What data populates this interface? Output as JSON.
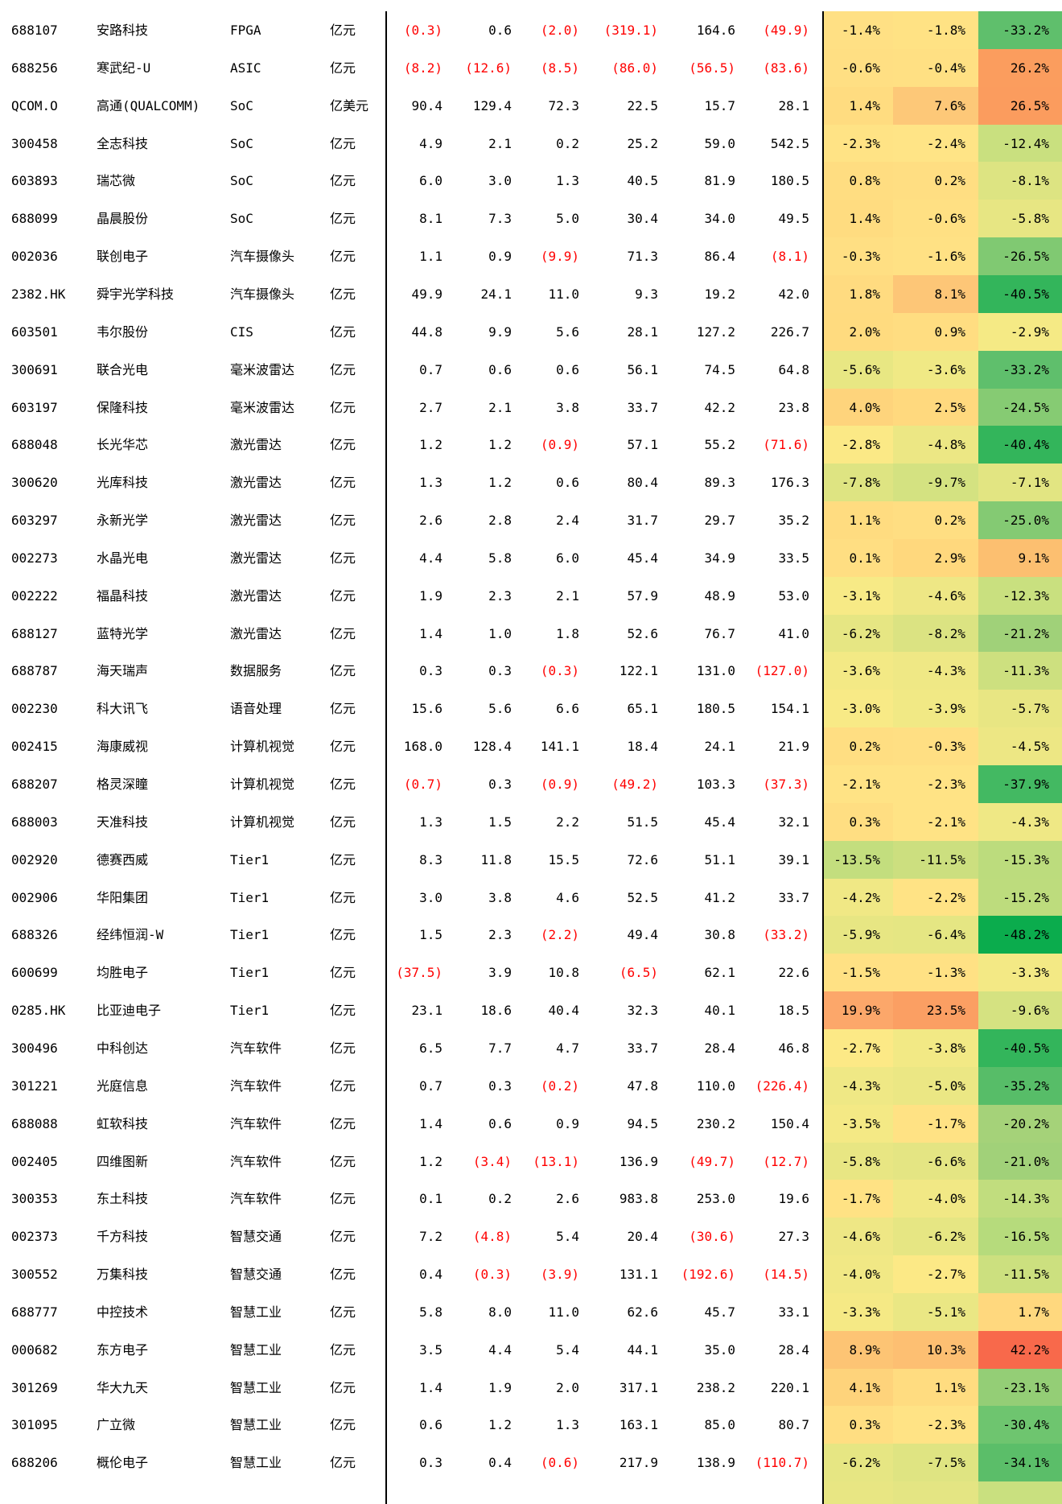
{
  "colors": {
    "negative_text": "#ff0000",
    "divider": "#000000"
  },
  "rows": [
    {
      "code": "688107",
      "name": "安路科技",
      "segment": "FPGA",
      "unit": "亿元",
      "vals": [
        "(0.3)",
        "0.6",
        "(2.0)",
        "(319.1)",
        "164.6",
        "(49.9)"
      ],
      "growth": [
        "-1.4%",
        "-1.8%",
        "-33.2%"
      ],
      "growth_colors": [
        "#ffe084",
        "#ffe284",
        "#5fbf6c"
      ]
    },
    {
      "code": "688256",
      "name": "寒武纪-U",
      "segment": "ASIC",
      "unit": "亿元",
      "vals": [
        "(8.2)",
        "(12.6)",
        "(8.5)",
        "(86.0)",
        "(56.5)",
        "(83.6)"
      ],
      "growth": [
        "-0.6%",
        "-0.4%",
        "26.2%"
      ],
      "growth_colors": [
        "#ffdf83",
        "#ffe083",
        "#fb9d5e"
      ]
    },
    {
      "code": "QCOM.O",
      "name": "高通(QUALCOMM)",
      "segment": "SoC",
      "unit": "亿美元",
      "vals": [
        "90.4",
        "129.4",
        "72.3",
        "22.5",
        "15.7",
        "28.1"
      ],
      "growth": [
        "1.4%",
        "7.6%",
        "26.5%"
      ],
      "growth_colors": [
        "#ffdc80",
        "#fdc878",
        "#fb9c5e"
      ]
    },
    {
      "code": "300458",
      "name": "全志科技",
      "segment": "SoC",
      "unit": "亿元",
      "vals": [
        "4.9",
        "2.1",
        "0.2",
        "25.2",
        "59.0",
        "542.5"
      ],
      "growth": [
        "-2.3%",
        "-2.4%",
        "-12.4%"
      ],
      "growth_colors": [
        "#ffe385",
        "#ffe486",
        "#c9e07f"
      ]
    },
    {
      "code": "603893",
      "name": "瑞芯微",
      "segment": "SoC",
      "unit": "亿元",
      "vals": [
        "6.0",
        "3.0",
        "1.3",
        "40.5",
        "81.9",
        "180.5"
      ],
      "growth": [
        "0.8%",
        "0.2%",
        "-8.1%"
      ],
      "growth_colors": [
        "#ffdd81",
        "#ffde82",
        "#dde482"
      ]
    },
    {
      "code": "688099",
      "name": "晶晨股份",
      "segment": "SoC",
      "unit": "亿元",
      "vals": [
        "8.1",
        "7.3",
        "5.0",
        "30.4",
        "34.0",
        "49.5"
      ],
      "growth": [
        "1.4%",
        "-0.6%",
        "-5.8%"
      ],
      "growth_colors": [
        "#ffdc80",
        "#ffe083",
        "#e7e683"
      ]
    },
    {
      "code": "002036",
      "name": "联创电子",
      "segment": "汽车摄像头",
      "unit": "亿元",
      "vals": [
        "1.1",
        "0.9",
        "(9.9)",
        "71.3",
        "86.4",
        "(8.1)"
      ],
      "growth": [
        "-0.3%",
        "-1.6%",
        "-26.5%"
      ],
      "growth_colors": [
        "#ffdf83",
        "#ffe184",
        "#80c972"
      ]
    },
    {
      "code": "2382.HK",
      "name": "舜宇光学科技",
      "segment": "汽车摄像头",
      "unit": "亿元",
      "vals": [
        "49.9",
        "24.1",
        "11.0",
        "9.3",
        "19.2",
        "42.0"
      ],
      "growth": [
        "1.8%",
        "8.1%",
        "-40.5%"
      ],
      "growth_colors": [
        "#ffdb80",
        "#fdc677",
        "#33b55b"
      ]
    },
    {
      "code": "603501",
      "name": "韦尔股份",
      "segment": "CIS",
      "unit": "亿元",
      "vals": [
        "44.8",
        "9.9",
        "5.6",
        "28.1",
        "127.2",
        "226.7"
      ],
      "growth": [
        "2.0%",
        "0.9%",
        "-2.9%"
      ],
      "growth_colors": [
        "#ffdb7f",
        "#ffdd81",
        "#f5ea85"
      ]
    },
    {
      "code": "300691",
      "name": "联合光电",
      "segment": "毫米波雷达",
      "unit": "亿元",
      "vals": [
        "0.7",
        "0.6",
        "0.6",
        "56.1",
        "74.5",
        "64.8"
      ],
      "growth": [
        "-5.6%",
        "-3.6%",
        "-33.2%"
      ],
      "growth_colors": [
        "#e8e783",
        "#f0e985",
        "#5fbf6c"
      ]
    },
    {
      "code": "603197",
      "name": "保隆科技",
      "segment": "毫米波雷达",
      "unit": "亿元",
      "vals": [
        "2.7",
        "2.1",
        "3.8",
        "33.7",
        "42.2",
        "23.8"
      ],
      "growth": [
        "4.0%",
        "2.5%",
        "-24.5%"
      ],
      "growth_colors": [
        "#fed47c",
        "#ffd97e",
        "#86cb73"
      ]
    },
    {
      "code": "688048",
      "name": "长光华芯",
      "segment": "激光雷达",
      "unit": "亿元",
      "vals": [
        "1.2",
        "1.2",
        "(0.9)",
        "57.1",
        "55.2",
        "(71.6)"
      ],
      "growth": [
        "-2.8%",
        "-4.8%",
        "-40.4%"
      ],
      "growth_colors": [
        "#fbe986",
        "#ece784",
        "#33b55b"
      ]
    },
    {
      "code": "300620",
      "name": "光库科技",
      "segment": "激光雷达",
      "unit": "亿元",
      "vals": [
        "1.3",
        "1.2",
        "0.6",
        "80.4",
        "89.3",
        "176.3"
      ],
      "growth": [
        "-7.8%",
        "-9.7%",
        "-7.1%"
      ],
      "growth_colors": [
        "#dee482",
        "#d4e281",
        "#e2e582"
      ]
    },
    {
      "code": "603297",
      "name": "永新光学",
      "segment": "激光雷达",
      "unit": "亿元",
      "vals": [
        "2.6",
        "2.8",
        "2.4",
        "31.7",
        "29.7",
        "35.2"
      ],
      "growth": [
        "1.1%",
        "0.2%",
        "-25.0%"
      ],
      "growth_colors": [
        "#ffdc80",
        "#ffde82",
        "#84ca73"
      ]
    },
    {
      "code": "002273",
      "name": "水晶光电",
      "segment": "激光雷达",
      "unit": "亿元",
      "vals": [
        "4.4",
        "5.8",
        "6.0",
        "45.4",
        "34.9",
        "33.5"
      ],
      "growth": [
        "0.1%",
        "2.9%",
        "9.1%"
      ],
      "growth_colors": [
        "#ffde82",
        "#ffd87d",
        "#fcbf70"
      ]
    },
    {
      "code": "002222",
      "name": "福晶科技",
      "segment": "激光雷达",
      "unit": "亿元",
      "vals": [
        "1.9",
        "2.3",
        "2.1",
        "57.9",
        "48.9",
        "53.0"
      ],
      "growth": [
        "-3.1%",
        "-4.6%",
        "-12.3%"
      ],
      "growth_colors": [
        "#f7ea86",
        "#eee785",
        "#c9e07f"
      ]
    },
    {
      "code": "688127",
      "name": "蓝特光学",
      "segment": "激光雷达",
      "unit": "亿元",
      "vals": [
        "1.4",
        "1.0",
        "1.8",
        "52.6",
        "76.7",
        "41.0"
      ],
      "growth": [
        "-6.2%",
        "-8.2%",
        "-21.2%"
      ],
      "growth_colors": [
        "#e6e683",
        "#dbe382",
        "#a0d179"
      ]
    },
    {
      "code": "688787",
      "name": "海天瑞声",
      "segment": "数据服务",
      "unit": "亿元",
      "vals": [
        "0.3",
        "0.3",
        "(0.3)",
        "122.1",
        "131.0",
        "(127.0)"
      ],
      "growth": [
        "-3.6%",
        "-4.3%",
        "-11.3%"
      ],
      "growth_colors": [
        "#f3e985",
        "#efe885",
        "#cde07f"
      ]
    },
    {
      "code": "002230",
      "name": "科大讯飞",
      "segment": "语音处理",
      "unit": "亿元",
      "vals": [
        "15.6",
        "5.6",
        "6.6",
        "65.1",
        "180.5",
        "154.1"
      ],
      "growth": [
        "-3.0%",
        "-3.9%",
        "-5.7%"
      ],
      "growth_colors": [
        "#f8ea86",
        "#f1e985",
        "#e8e683"
      ]
    },
    {
      "code": "002415",
      "name": "海康威视",
      "segment": "计算机视觉",
      "unit": "亿元",
      "vals": [
        "168.0",
        "128.4",
        "141.1",
        "18.4",
        "24.1",
        "21.9"
      ],
      "growth": [
        "0.2%",
        "-0.3%",
        "-4.5%"
      ],
      "growth_colors": [
        "#ffde82",
        "#ffdf83",
        "#ede784"
      ]
    },
    {
      "code": "688207",
      "name": "格灵深瞳",
      "segment": "计算机视觉",
      "unit": "亿元",
      "vals": [
        "(0.7)",
        "0.3",
        "(0.9)",
        "(49.2)",
        "103.3",
        "(37.3)"
      ],
      "growth": [
        "-2.1%",
        "-2.3%",
        "-37.9%"
      ],
      "growth_colors": [
        "#ffe385",
        "#ffe385",
        "#43b962"
      ]
    },
    {
      "code": "688003",
      "name": "天准科技",
      "segment": "计算机视觉",
      "unit": "亿元",
      "vals": [
        "1.3",
        "1.5",
        "2.2",
        "51.5",
        "45.4",
        "32.1"
      ],
      "growth": [
        "0.3%",
        "-2.1%",
        "-4.3%"
      ],
      "growth_colors": [
        "#ffde82",
        "#ffe385",
        "#efe885"
      ]
    },
    {
      "code": "002920",
      "name": "德赛西威",
      "segment": "Tier1",
      "unit": "亿元",
      "vals": [
        "8.3",
        "11.8",
        "15.5",
        "72.6",
        "51.1",
        "39.1"
      ],
      "growth": [
        "-13.5%",
        "-11.5%",
        "-15.3%"
      ],
      "growth_colors": [
        "#c3de7e",
        "#ccdf7f",
        "#bcdc7d"
      ]
    },
    {
      "code": "002906",
      "name": "华阳集团",
      "segment": "Tier1",
      "unit": "亿元",
      "vals": [
        "3.0",
        "3.8",
        "4.6",
        "52.5",
        "41.2",
        "33.7"
      ],
      "growth": [
        "-4.2%",
        "-2.2%",
        "-15.2%"
      ],
      "growth_colors": [
        "#f0e885",
        "#ffe385",
        "#bddc7d"
      ]
    },
    {
      "code": "688326",
      "name": "经纬恒润-W",
      "segment": "Tier1",
      "unit": "亿元",
      "vals": [
        "1.5",
        "2.3",
        "(2.2)",
        "49.4",
        "30.8",
        "(33.2)"
      ],
      "growth": [
        "-5.9%",
        "-6.4%",
        "-48.2%"
      ],
      "growth_colors": [
        "#e7e683",
        "#e5e683",
        "#0bac4d"
      ]
    },
    {
      "code": "600699",
      "name": "均胜电子",
      "segment": "Tier1",
      "unit": "亿元",
      "vals": [
        "(37.5)",
        "3.9",
        "10.8",
        "(6.5)",
        "62.1",
        "22.6"
      ],
      "growth": [
        "-1.5%",
        "-1.3%",
        "-3.3%"
      ],
      "growth_colors": [
        "#ffe184",
        "#ffe184",
        "#f3e985"
      ]
    },
    {
      "code": "0285.HK",
      "name": "比亚迪电子",
      "segment": "Tier1",
      "unit": "亿元",
      "vals": [
        "23.1",
        "18.6",
        "40.4",
        "32.3",
        "40.1",
        "18.5"
      ],
      "growth": [
        "19.9%",
        "23.5%",
        "-9.6%"
      ],
      "growth_colors": [
        "#fca76a",
        "#fb9f63",
        "#d5e281"
      ]
    },
    {
      "code": "300496",
      "name": "中科创达",
      "segment": "汽车软件",
      "unit": "亿元",
      "vals": [
        "6.5",
        "7.7",
        "4.7",
        "33.7",
        "28.4",
        "46.8"
      ],
      "growth": [
        "-2.7%",
        "-3.8%",
        "-40.5%"
      ],
      "growth_colors": [
        "#fce986",
        "#f2e985",
        "#33b55b"
      ]
    },
    {
      "code": "301221",
      "name": "光庭信息",
      "segment": "汽车软件",
      "unit": "亿元",
      "vals": [
        "0.7",
        "0.3",
        "(0.2)",
        "47.8",
        "110.0",
        "(226.4)"
      ],
      "growth": [
        "-4.3%",
        "-5.0%",
        "-35.2%"
      ],
      "growth_colors": [
        "#efe885",
        "#ebe784",
        "#57bd68"
      ]
    },
    {
      "code": "688088",
      "name": "虹软科技",
      "segment": "汽车软件",
      "unit": "亿元",
      "vals": [
        "1.4",
        "0.6",
        "0.9",
        "94.5",
        "230.2",
        "150.4"
      ],
      "growth": [
        "-3.5%",
        "-1.7%",
        "-20.2%"
      ],
      "growth_colors": [
        "#f4e985",
        "#ffe284",
        "#a5d279"
      ]
    },
    {
      "code": "002405",
      "name": "四维图新",
      "segment": "汽车软件",
      "unit": "亿元",
      "vals": [
        "1.2",
        "(3.4)",
        "(13.1)",
        "136.9",
        "(49.7)",
        "(12.7)"
      ],
      "growth": [
        "-5.8%",
        "-6.6%",
        "-21.0%"
      ],
      "growth_colors": [
        "#e8e683",
        "#e4e583",
        "#a1d179"
      ]
    },
    {
      "code": "300353",
      "name": "东土科技",
      "segment": "汽车软件",
      "unit": "亿元",
      "vals": [
        "0.1",
        "0.2",
        "2.6",
        "983.8",
        "253.0",
        "19.6"
      ],
      "growth": [
        "-1.7%",
        "-4.0%",
        "-14.3%"
      ],
      "growth_colors": [
        "#ffe284",
        "#f1e885",
        "#c1dd7e"
      ]
    },
    {
      "code": "002373",
      "name": "千方科技",
      "segment": "智慧交通",
      "unit": "亿元",
      "vals": [
        "7.2",
        "(4.8)",
        "5.4",
        "20.4",
        "(30.6)",
        "27.3"
      ],
      "growth": [
        "-4.6%",
        "-6.2%",
        "-16.5%"
      ],
      "growth_colors": [
        "#eee785",
        "#e6e683",
        "#b6db7c"
      ]
    },
    {
      "code": "300552",
      "name": "万集科技",
      "segment": "智慧交通",
      "unit": "亿元",
      "vals": [
        "0.4",
        "(0.3)",
        "(3.9)",
        "131.1",
        "(192.6)",
        "(14.5)"
      ],
      "growth": [
        "-4.0%",
        "-2.7%",
        "-11.5%"
      ],
      "growth_colors": [
        "#f1e885",
        "#fce986",
        "#cce07f"
      ]
    },
    {
      "code": "688777",
      "name": "中控技术",
      "segment": "智慧工业",
      "unit": "亿元",
      "vals": [
        "5.8",
        "8.0",
        "11.0",
        "62.6",
        "45.7",
        "33.1"
      ],
      "growth": [
        "-3.3%",
        "-5.1%",
        "1.7%"
      ],
      "growth_colors": [
        "#f5e985",
        "#eae784",
        "#ffd87e"
      ]
    },
    {
      "code": "000682",
      "name": "东方电子",
      "segment": "智慧工业",
      "unit": "亿元",
      "vals": [
        "3.5",
        "4.4",
        "5.4",
        "44.1",
        "35.0",
        "28.4"
      ],
      "growth": [
        "8.9%",
        "10.3%",
        "42.2%"
      ],
      "growth_colors": [
        "#fdc474",
        "#fdbf72",
        "#f8694b"
      ]
    },
    {
      "code": "301269",
      "name": "华大九天",
      "segment": "智慧工业",
      "unit": "亿元",
      "vals": [
        "1.4",
        "1.9",
        "2.0",
        "317.1",
        "238.2",
        "220.1"
      ],
      "growth": [
        "4.1%",
        "1.1%",
        "-23.1%"
      ],
      "growth_colors": [
        "#fed37b",
        "#ffdc80",
        "#94ce76"
      ]
    },
    {
      "code": "301095",
      "name": "广立微",
      "segment": "智慧工业",
      "unit": "亿元",
      "vals": [
        "0.6",
        "1.2",
        "1.3",
        "163.1",
        "85.0",
        "80.7"
      ],
      "growth": [
        "0.3%",
        "-2.3%",
        "-30.4%"
      ],
      "growth_colors": [
        "#ffde82",
        "#ffe385",
        "#6ec56f"
      ]
    },
    {
      "code": "688206",
      "name": "概伦电子",
      "segment": "智慧工业",
      "unit": "亿元",
      "vals": [
        "0.3",
        "0.4",
        "(0.6)",
        "217.9",
        "138.9",
        "(110.7)"
      ],
      "growth": [
        "-6.2%",
        "-7.5%",
        "-34.1%"
      ],
      "growth_colors": [
        "#e6e683",
        "#dfe482",
        "#5bbe69"
      ]
    }
  ],
  "trailing_colors": [
    "#e8e683",
    "#e4e583",
    "#c9e07f"
  ]
}
